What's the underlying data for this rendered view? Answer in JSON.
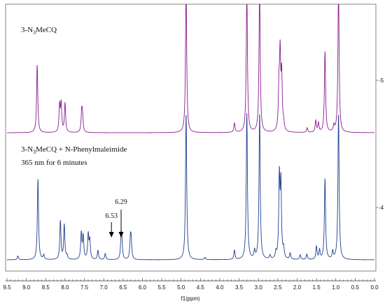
{
  "chart_data": {
    "type": "line",
    "xlabel_main": "f1",
    "xlabel_unit": "ppm",
    "x_ticks": [
      "9.5",
      "9.0",
      "8.5",
      "8.0",
      "7.5",
      "7.0",
      "6.5",
      "6.0",
      "5.5",
      "5.0",
      "4.5",
      "4.0",
      "3.5",
      "3.0",
      "2.5",
      "2.0",
      "1.5",
      "1.0",
      "0.5",
      "0.0"
    ],
    "xlim": [
      9.5,
      0.0
    ],
    "axis_reversed": true,
    "right_axis_labels": [
      "-5",
      "-4"
    ],
    "series": [
      {
        "name": "3-N3MeCQ",
        "label_parts": [
          "3-N",
          "3",
          "MeCQ"
        ],
        "color": "#8b1c8f",
        "peaks": [
          {
            "ppm": 8.72,
            "h": 0.88
          },
          {
            "ppm": 8.14,
            "h": 0.34
          },
          {
            "ppm": 8.1,
            "h": 0.36
          },
          {
            "ppm": 8.0,
            "h": 0.38
          },
          {
            "ppm": 7.57,
            "h": 0.23
          },
          {
            "ppm": 7.55,
            "h": 0.22
          },
          {
            "ppm": 4.87,
            "h": 1.9
          },
          {
            "ppm": 3.62,
            "h": 0.12
          },
          {
            "ppm": 3.3,
            "h": 1.9
          },
          {
            "ppm": 2.97,
            "h": 1.9
          },
          {
            "ppm": 2.47,
            "h": 0.52
          },
          {
            "ppm": 2.44,
            "h": 0.95
          },
          {
            "ppm": 2.4,
            "h": 0.7
          },
          {
            "ppm": 2.35,
            "h": 0.1
          },
          {
            "ppm": 1.74,
            "h": 0.06
          },
          {
            "ppm": 1.52,
            "h": 0.15
          },
          {
            "ppm": 1.45,
            "h": 0.12
          },
          {
            "ppm": 1.28,
            "h": 1.05
          },
          {
            "ppm": 1.05,
            "h": 0.08
          },
          {
            "ppm": 0.93,
            "h": 1.9
          }
        ]
      },
      {
        "name": "3-N3MeCQ + N-Phenylmaleimide",
        "label_parts": [
          "3-N",
          "3",
          "MeCQ + N-Phenylmaleimide"
        ],
        "condition": "365 nm for 6 minutes",
        "color": "#1f3f8f",
        "peaks": [
          {
            "ppm": 9.22,
            "h": 0.05
          },
          {
            "ppm": 8.7,
            "h": 1.05
          },
          {
            "ppm": 8.55,
            "h": 0.06
          },
          {
            "ppm": 8.12,
            "h": 0.5
          },
          {
            "ppm": 8.02,
            "h": 0.45
          },
          {
            "ppm": 7.95,
            "h": 0.05
          },
          {
            "ppm": 7.58,
            "h": 0.34
          },
          {
            "ppm": 7.53,
            "h": 0.3
          },
          {
            "ppm": 7.4,
            "h": 0.32
          },
          {
            "ppm": 7.36,
            "h": 0.24
          },
          {
            "ppm": 7.15,
            "h": 0.12
          },
          {
            "ppm": 6.96,
            "h": 0.08
          },
          {
            "ppm": 6.55,
            "h": 0.28
          },
          {
            "ppm": 6.53,
            "h": 0.2
          },
          {
            "ppm": 6.31,
            "h": 0.25
          },
          {
            "ppm": 6.29,
            "h": 0.22
          },
          {
            "ppm": 4.87,
            "h": 1.9
          },
          {
            "ppm": 4.38,
            "h": 0.03
          },
          {
            "ppm": 3.62,
            "h": 0.12
          },
          {
            "ppm": 3.3,
            "h": 1.9
          },
          {
            "ppm": 3.1,
            "h": 0.1
          },
          {
            "ppm": 2.97,
            "h": 1.9
          },
          {
            "ppm": 2.7,
            "h": 0.05
          },
          {
            "ppm": 2.55,
            "h": 0.08
          },
          {
            "ppm": 2.46,
            "h": 1.05
          },
          {
            "ppm": 2.42,
            "h": 0.95
          },
          {
            "ppm": 2.35,
            "h": 0.12
          },
          {
            "ppm": 2.18,
            "h": 0.08
          },
          {
            "ppm": 1.92,
            "h": 0.06
          },
          {
            "ppm": 1.75,
            "h": 0.07
          },
          {
            "ppm": 1.5,
            "h": 0.17
          },
          {
            "ppm": 1.42,
            "h": 0.12
          },
          {
            "ppm": 1.28,
            "h": 1.05
          },
          {
            "ppm": 1.08,
            "h": 0.1
          },
          {
            "ppm": 0.93,
            "h": 1.9
          }
        ]
      }
    ],
    "annotations": [
      {
        "text": "6.53",
        "ppm": 6.8
      },
      {
        "text": "6.29",
        "ppm": 6.55
      }
    ]
  }
}
